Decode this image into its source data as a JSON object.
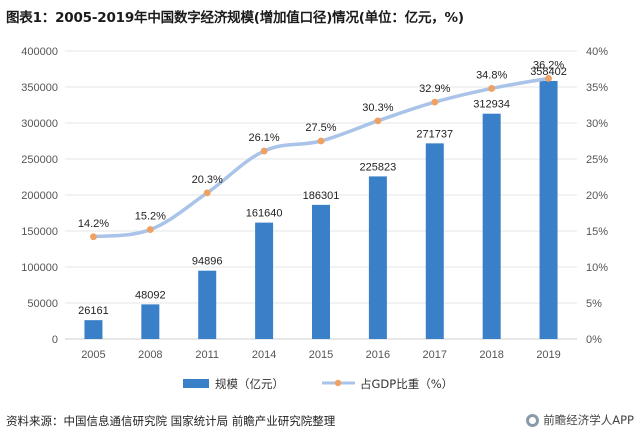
{
  "title": "图表1：2005-2019年中国数字经济规模(增加值口径)情况(单位：亿元，%)",
  "source": "资料来源：中国信息通信研究院 国家统计局 前瞻产业研究院整理",
  "brand": "前瞻经济学人APP",
  "colors": {
    "bar": "#3a80c8",
    "line": "#a9c4e8",
    "marker": "#f0a060"
  },
  "chart_data": {
    "type": "bar",
    "categories": [
      "2005",
      "2008",
      "2011",
      "2014",
      "2015",
      "2016",
      "2017",
      "2018",
      "2019"
    ],
    "series": [
      {
        "name": "规模（亿元）",
        "type": "bar",
        "axis": "left",
        "values": [
          26161,
          48092,
          94896,
          161640,
          186301,
          225823,
          271737,
          312934,
          358402
        ],
        "labels": [
          "26161",
          "48092",
          "94896",
          "161640",
          "186301",
          "225823",
          "271737",
          "312934",
          "358402"
        ]
      },
      {
        "name": "占GDP比重（%）",
        "type": "line",
        "axis": "right",
        "values": [
          14.2,
          15.2,
          20.3,
          26.1,
          27.5,
          30.3,
          32.9,
          34.8,
          36.2
        ],
        "labels": [
          "14.2%",
          "15.2%",
          "20.3%",
          "26.1%",
          "27.5%",
          "30.3%",
          "32.9%",
          "34.8%",
          "36.2%"
        ]
      }
    ],
    "ylim_left": [
      0,
      400000
    ],
    "yticks_left": [
      "0",
      "50000",
      "100000",
      "150000",
      "200000",
      "250000",
      "300000",
      "350000",
      "400000"
    ],
    "ylim_right": [
      0,
      40
    ],
    "yticks_right": [
      "0%",
      "5%",
      "10%",
      "15%",
      "20%",
      "25%",
      "30%",
      "35%",
      "40%"
    ],
    "grid": true,
    "legend_position": "bottom-center"
  }
}
